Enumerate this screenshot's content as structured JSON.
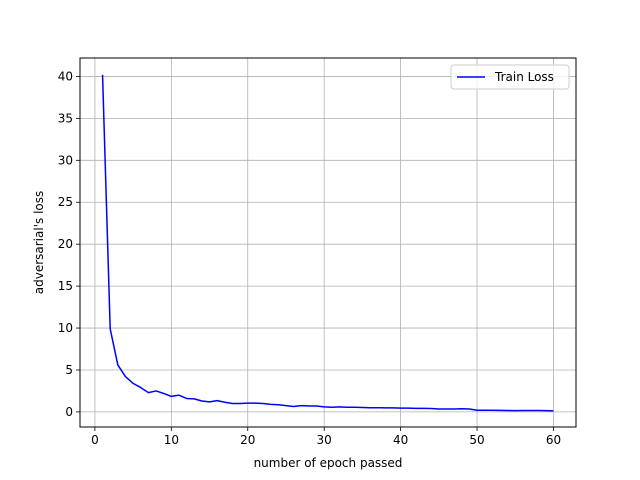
{
  "chart_data": {
    "type": "line",
    "title": "",
    "xlabel": "number of epoch passed",
    "ylabel": "adversarial's loss",
    "xlim": [
      -1.95,
      62.95
    ],
    "ylim": [
      -1.8,
      42.2
    ],
    "xticks": [
      0,
      10,
      20,
      30,
      40,
      50,
      60
    ],
    "yticks": [
      0,
      5,
      10,
      15,
      20,
      25,
      30,
      35,
      40
    ],
    "grid": true,
    "legend_position": "top-right",
    "series": [
      {
        "name": "Train Loss",
        "color": "#0000ff",
        "x": [
          1,
          2,
          3,
          4,
          5,
          6,
          7,
          8,
          9,
          10,
          11,
          12,
          13,
          14,
          15,
          16,
          17,
          18,
          19,
          20,
          21,
          22,
          23,
          24,
          25,
          26,
          27,
          28,
          29,
          30,
          31,
          32,
          33,
          34,
          35,
          36,
          37,
          38,
          39,
          40,
          41,
          42,
          43,
          44,
          45,
          46,
          47,
          48,
          49,
          50,
          51,
          52,
          53,
          54,
          55,
          56,
          57,
          58,
          59,
          60
        ],
        "values": [
          40.2,
          9.9,
          5.6,
          4.2,
          3.4,
          2.9,
          2.3,
          2.5,
          2.2,
          1.85,
          2.0,
          1.6,
          1.55,
          1.3,
          1.2,
          1.35,
          1.15,
          1.0,
          1.0,
          1.05,
          1.05,
          1.0,
          0.9,
          0.85,
          0.75,
          0.65,
          0.75,
          0.7,
          0.7,
          0.6,
          0.55,
          0.6,
          0.55,
          0.55,
          0.52,
          0.5,
          0.5,
          0.48,
          0.48,
          0.45,
          0.45,
          0.42,
          0.42,
          0.4,
          0.35,
          0.35,
          0.35,
          0.37,
          0.35,
          0.2,
          0.2,
          0.2,
          0.18,
          0.17,
          0.15,
          0.17,
          0.17,
          0.16,
          0.15,
          0.12
        ]
      }
    ]
  }
}
